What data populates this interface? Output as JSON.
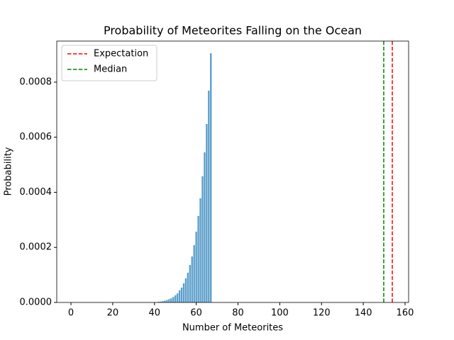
{
  "chart_data": {
    "type": "bar",
    "title": "Probability of Meteorites Falling on the Ocean",
    "xlabel": "Number of Meteorites",
    "ylabel": "Probability",
    "color": "#5b9fcb",
    "x": [
      42,
      43,
      44,
      45,
      46,
      47,
      48,
      49,
      50,
      51,
      52,
      53,
      54,
      55,
      56,
      57,
      58,
      59,
      60,
      61,
      62,
      63,
      64,
      65,
      66,
      67
    ],
    "values": [
      2.5e-06,
      3.5e-06,
      4.8e-06,
      6.5e-06,
      9e-06,
      1.2e-05,
      1.5e-05,
      2e-05,
      2.6e-05,
      3.3e-05,
      4.4e-05,
      5.4e-05,
      6.95e-05,
      8.75e-05,
      0.000108,
      0.000136,
      0.000167,
      0.000208,
      0.000257,
      0.000314,
      0.000378,
      0.000458,
      0.000545,
      0.000648,
      0.000769,
      0.000905
    ],
    "vlines": [
      {
        "name": "Expectation",
        "color": "#ff0000",
        "value": 153.9
      },
      {
        "name": "Median",
        "color": "#008000",
        "value": 149.8
      }
    ],
    "legend": "upper left",
    "xlim": [
      -6.8,
      161.7
    ],
    "xticks": [
      0,
      20,
      40,
      60,
      80,
      100,
      120,
      140,
      160
    ],
    "ylim": [
      0,
      0.000949
    ],
    "yticks": [
      {
        "value": 0,
        "label": "0.0000"
      },
      {
        "value": 0.0002,
        "label": "0.0002"
      },
      {
        "value": 0.0004,
        "label": "0.0004"
      },
      {
        "value": 0.0006,
        "label": "0.0006"
      },
      {
        "value": 0.0008,
        "label": "0.0008"
      }
    ]
  }
}
